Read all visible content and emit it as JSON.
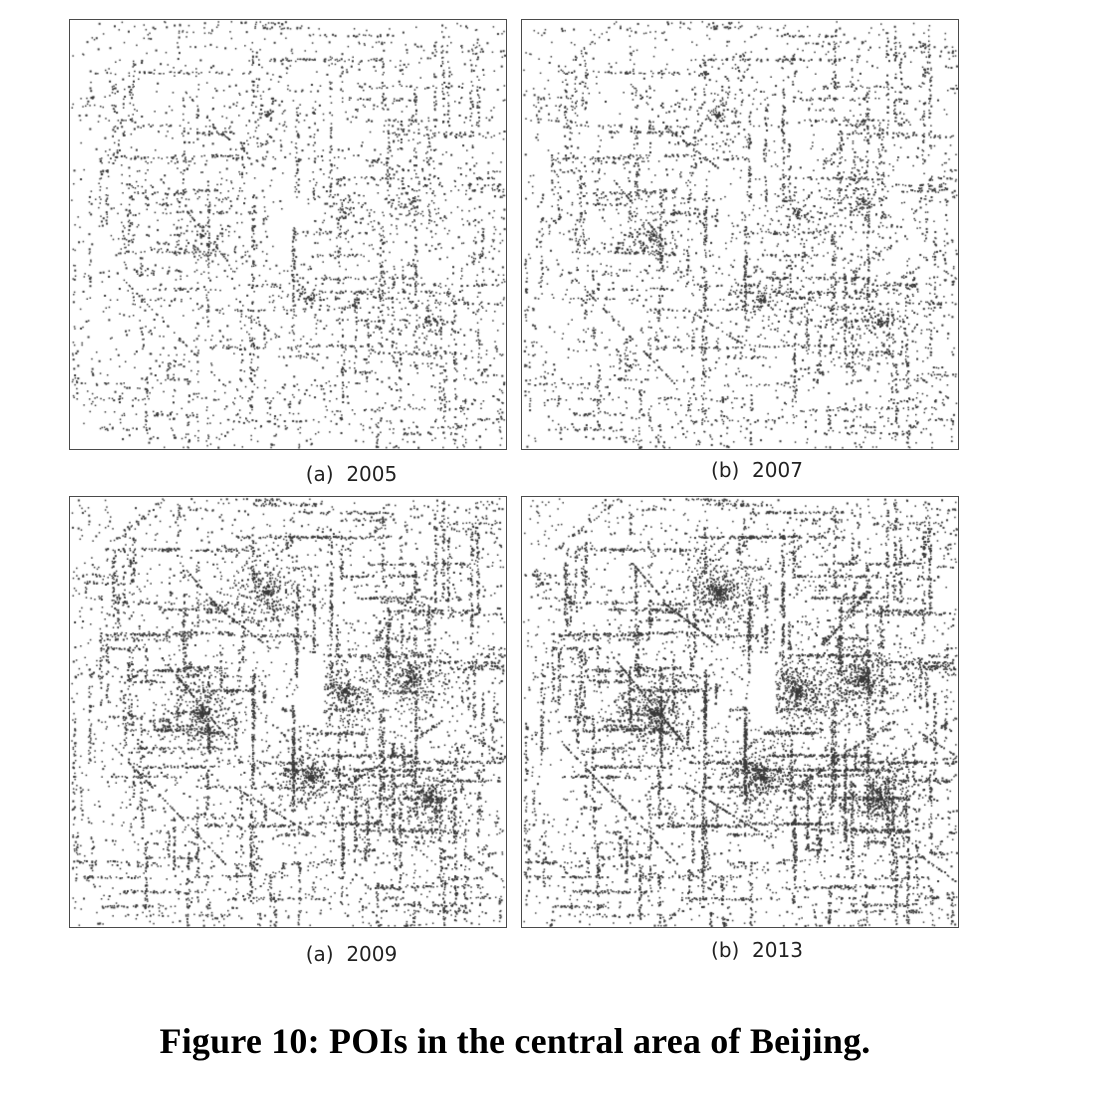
{
  "panels": [
    {
      "id": "2005",
      "label": "(a)  2005",
      "density": 0.45
    },
    {
      "id": "2007",
      "label": "(b)  2007",
      "density": 0.55
    },
    {
      "id": "2009",
      "label": "(a)  2009",
      "density": 0.85
    },
    {
      "id": "2013",
      "label": "(b)  2013",
      "density": 1.0
    }
  ],
  "figure": {
    "caption": "Figure 10: POIs in the central area of Beijing."
  },
  "colors": {
    "point": "#3a3a3a",
    "border": "#4a4a4a",
    "background": "#ffffff"
  }
}
